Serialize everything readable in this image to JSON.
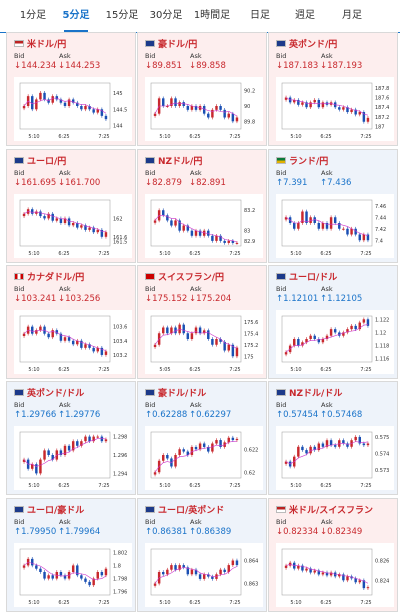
{
  "tabs": [
    {
      "label": "1分足",
      "active": false
    },
    {
      "label": "5分足",
      "active": true
    },
    {
      "label": "15分足",
      "active": false
    },
    {
      "label": "30分足",
      "active": false
    },
    {
      "label": "1時間足",
      "active": false
    },
    {
      "label": "日足",
      "active": false
    },
    {
      "label": "週足",
      "active": false
    },
    {
      "label": "月足",
      "active": false
    }
  ],
  "labels": {
    "bid": "Bid",
    "ask": "Ask"
  },
  "colors": {
    "down_bg": "#fdeeee",
    "up_bg": "#eef3fa",
    "down": "#c8282d",
    "up": "#1a73c9",
    "ma": "#cc33cc"
  },
  "pairs": [
    {
      "name": "米ドル/円",
      "flag": "us-jp",
      "trend": "down",
      "bid": "144.234",
      "ask": "144.253",
      "y_ticks": [
        "145",
        "144.5",
        "144"
      ],
      "x_ticks": [
        "5:10",
        "6:25",
        "7:25"
      ],
      "chart_data": {
        "type": "candlestick",
        "ylim": [
          143.9,
          145.3
        ],
        "close": [
          144.6,
          144.9,
          144.5,
          144.8,
          145.0,
          144.8,
          144.7,
          144.9,
          144.8,
          144.7,
          144.6,
          144.8,
          144.7,
          144.6,
          144.5,
          144.6,
          144.5,
          144.4,
          144.5,
          144.3,
          144.2
        ]
      }
    },
    {
      "name": "豪ドル/円",
      "flag": "au-jp",
      "trend": "down",
      "bid": "89.851",
      "ask": "89.858",
      "y_ticks": [
        "90.2",
        "90",
        "89.8"
      ],
      "x_ticks": [
        "5:10",
        "6:25",
        "7:25"
      ],
      "chart_data": {
        "type": "candlestick",
        "ylim": [
          89.7,
          90.3
        ],
        "close": [
          89.9,
          90.1,
          90.0,
          90.0,
          90.1,
          90.0,
          90.05,
          90.0,
          89.95,
          90.0,
          89.95,
          90.0,
          89.9,
          89.85,
          89.95,
          90.0,
          89.95,
          89.85,
          89.9,
          89.8,
          89.85
        ]
      }
    },
    {
      "name": "英ポンド/円",
      "flag": "gb-jp",
      "trend": "down",
      "bid": "187.183",
      "ask": "187.193",
      "y_ticks": [
        "187.8",
        "187.6",
        "187.4",
        "187.2",
        "187"
      ],
      "x_ticks": [
        "5:10",
        "6:25",
        "7:25"
      ],
      "chart_data": {
        "type": "candlestick",
        "ylim": [
          186.95,
          187.9
        ],
        "close": [
          187.6,
          187.5,
          187.55,
          187.45,
          187.5,
          187.4,
          187.5,
          187.55,
          187.4,
          187.5,
          187.45,
          187.5,
          187.4,
          187.35,
          187.4,
          187.3,
          187.35,
          187.25,
          187.3,
          187.1,
          187.18
        ]
      }
    },
    {
      "name": "ユーロ/円",
      "flag": "eu-jp",
      "trend": "down",
      "bid": "161.695",
      "ask": "161.700",
      "y_ticks": [
        "162",
        "161.6",
        "161.5"
      ],
      "x_ticks": [
        "5:10",
        "6:25",
        "7:25"
      ],
      "chart_data": {
        "type": "candlestick",
        "ylim": [
          161.4,
          162.4
        ],
        "close": [
          162.1,
          162.2,
          162.1,
          162.15,
          162.05,
          162.0,
          162.1,
          161.95,
          162.0,
          161.9,
          162.0,
          161.85,
          161.9,
          161.8,
          161.85,
          161.75,
          161.8,
          161.7,
          161.75,
          161.6,
          161.7
        ]
      }
    },
    {
      "name": "NZドル/円",
      "flag": "nz-jp",
      "trend": "down",
      "bid": "82.879",
      "ask": "82.891",
      "y_ticks": [
        "83.2",
        "83",
        "82.9"
      ],
      "x_ticks": [
        "5:10",
        "6:25",
        "7:25"
      ],
      "chart_data": {
        "type": "candlestick",
        "ylim": [
          82.85,
          83.3
        ],
        "close": [
          83.1,
          83.2,
          83.15,
          83.1,
          83.05,
          83.1,
          83.0,
          83.05,
          83.0,
          82.95,
          83.0,
          82.95,
          83.0,
          82.95,
          82.9,
          82.95,
          82.9,
          82.88,
          82.9,
          82.88,
          82.88
        ]
      }
    },
    {
      "name": "ランド/円",
      "flag": "za-jp",
      "trend": "up",
      "bid": "7.391",
      "ask": "7.436",
      "y_ticks": [
        "7.46",
        "7.44",
        "7.42",
        "7.4"
      ],
      "x_ticks": [
        "5:10",
        "6:25",
        "7:25"
      ],
      "chart_data": {
        "type": "candlestick",
        "ylim": [
          7.39,
          7.47
        ],
        "close": [
          7.44,
          7.43,
          7.42,
          7.43,
          7.45,
          7.43,
          7.44,
          7.43,
          7.42,
          7.43,
          7.42,
          7.44,
          7.43,
          7.42,
          7.42,
          7.41,
          7.42,
          7.41,
          7.4,
          7.41,
          7.4
        ]
      }
    },
    {
      "name": "カナダドル/円",
      "flag": "ca-jp",
      "trend": "down",
      "bid": "103.241",
      "ask": "103.256",
      "y_ticks": [
        "103.6",
        "103.4",
        "103.2"
      ],
      "x_ticks": [
        "5:10",
        "6:25",
        "7:25"
      ],
      "chart_data": {
        "type": "candlestick",
        "ylim": [
          103.1,
          103.75
        ],
        "close": [
          103.5,
          103.6,
          103.5,
          103.55,
          103.6,
          103.5,
          103.45,
          103.55,
          103.5,
          103.4,
          103.45,
          103.4,
          103.35,
          103.4,
          103.3,
          103.35,
          103.3,
          103.25,
          103.3,
          103.2,
          103.25
        ]
      }
    },
    {
      "name": "スイスフラン/円",
      "flag": "ch-jp",
      "trend": "down",
      "bid": "175.152",
      "ask": "175.204",
      "y_ticks": [
        "175.6",
        "175.4",
        "175.2",
        "175"
      ],
      "x_ticks": [
        "5:05",
        "6:25",
        "7:25"
      ],
      "chart_data": {
        "type": "candlestick",
        "ylim": [
          174.9,
          175.7
        ],
        "close": [
          175.2,
          175.4,
          175.5,
          175.4,
          175.5,
          175.4,
          175.55,
          175.4,
          175.3,
          175.4,
          175.5,
          175.4,
          175.45,
          175.3,
          175.2,
          175.3,
          175.25,
          175.1,
          175.2,
          175.0,
          175.15
        ]
      }
    },
    {
      "name": "ユーロ/ドル",
      "flag": "eu-us",
      "trend": "up",
      "bid": "1.12101",
      "ask": "1.12105",
      "y_ticks": [
        "1.122",
        "1.12",
        "1.118",
        "1.116"
      ],
      "x_ticks": [
        "5:10",
        "6:25",
        "7:25"
      ],
      "chart_data": {
        "type": "candlestick",
        "ylim": [
          1.1155,
          1.1225
        ],
        "close": [
          1.117,
          1.118,
          1.119,
          1.118,
          1.1185,
          1.119,
          1.1195,
          1.119,
          1.1185,
          1.119,
          1.1195,
          1.1205,
          1.12,
          1.1195,
          1.12,
          1.1205,
          1.121,
          1.1205,
          1.1215,
          1.122,
          1.121
        ]
      }
    },
    {
      "name": "英ポンド/ドル",
      "flag": "gb-us",
      "trend": "up",
      "bid": "1.29766",
      "ask": "1.29776",
      "y_ticks": [
        "1.298",
        "1.296",
        "1.294"
      ],
      "x_ticks": [
        "5:10",
        "6:25",
        "7:25"
      ],
      "chart_data": {
        "type": "candlestick",
        "ylim": [
          1.2935,
          1.2985
        ],
        "close": [
          1.2955,
          1.2945,
          1.295,
          1.294,
          1.2955,
          1.2965,
          1.296,
          1.2955,
          1.2965,
          1.296,
          1.297,
          1.2965,
          1.2975,
          1.297,
          1.2975,
          1.298,
          1.2975,
          1.298,
          1.298,
          1.2975,
          1.2977
        ]
      }
    },
    {
      "name": "豪ドル/ドル",
      "flag": "au-us",
      "trend": "up",
      "bid": "0.62288",
      "ask": "0.62297",
      "y_ticks": [
        "0.622",
        "0.62"
      ],
      "x_ticks": [
        "5:10",
        "6:25",
        "7:25"
      ],
      "chart_data": {
        "type": "candlestick",
        "ylim": [
          0.6195,
          0.6235
        ],
        "close": [
          0.62,
          0.621,
          0.6215,
          0.6212,
          0.6205,
          0.6215,
          0.622,
          0.6218,
          0.6215,
          0.6222,
          0.622,
          0.6225,
          0.6222,
          0.6218,
          0.6225,
          0.6228,
          0.6222,
          0.6226,
          0.623,
          0.6228,
          0.6229
        ]
      }
    },
    {
      "name": "NZドル/ドル",
      "flag": "nz-us",
      "trend": "up",
      "bid": "0.57454",
      "ask": "0.57468",
      "y_ticks": [
        "0.575",
        "0.574",
        "0.573"
      ],
      "x_ticks": [
        "5:10",
        "6:25",
        "7:25"
      ],
      "chart_data": {
        "type": "candlestick",
        "ylim": [
          0.5725,
          0.5753
        ],
        "close": [
          0.5735,
          0.5732,
          0.5738,
          0.5744,
          0.5742,
          0.574,
          0.5744,
          0.5742,
          0.5746,
          0.5744,
          0.5748,
          0.5745,
          0.5744,
          0.5748,
          0.5746,
          0.5744,
          0.5748,
          0.575,
          0.5746,
          0.5745,
          0.5746
        ]
      }
    },
    {
      "name": "ユーロ/豪ドル",
      "flag": "eu-au",
      "trend": "up",
      "bid": "1.79950",
      "ask": "1.79964",
      "y_ticks": [
        "1.802",
        "1.8",
        "1.798",
        "1.796"
      ],
      "x_ticks": [
        "5:10",
        "6:25",
        "7:25"
      ],
      "chart_data": {
        "type": "candlestick",
        "ylim": [
          1.7955,
          1.8025
        ],
        "close": [
          1.8,
          1.801,
          1.8,
          1.7995,
          1.799,
          1.798,
          1.7985,
          1.798,
          1.799,
          1.7985,
          1.798,
          1.799,
          1.8,
          1.7985,
          1.798,
          1.7975,
          1.797,
          1.798,
          1.799,
          1.7985,
          1.7995
        ]
      }
    },
    {
      "name": "ユーロ/英ポンド",
      "flag": "eu-gb",
      "trend": "up",
      "bid": "0.86381",
      "ask": "0.86389",
      "y_ticks": [
        "0.864",
        "0.863"
      ],
      "x_ticks": [
        "5:10",
        "6:25",
        "7:25"
      ],
      "chart_data": {
        "type": "candlestick",
        "ylim": [
          0.8625,
          0.8645
        ],
        "close": [
          0.863,
          0.8635,
          0.8634,
          0.8636,
          0.8638,
          0.8636,
          0.8638,
          0.8637,
          0.8634,
          0.8636,
          0.8634,
          0.8632,
          0.8634,
          0.8633,
          0.8632,
          0.8634,
          0.8636,
          0.8635,
          0.8638,
          0.864,
          0.8638
        ]
      }
    },
    {
      "name": "米ドル/スイスフラン",
      "flag": "us-ch",
      "trend": "down",
      "bid": "0.82334",
      "ask": "0.82349",
      "y_ticks": [
        "0.826",
        "0.824"
      ],
      "x_ticks": [
        "5:10",
        "6:25",
        "7:25"
      ],
      "chart_data": {
        "type": "candlestick",
        "ylim": [
          0.8225,
          0.8272
        ],
        "close": [
          0.8255,
          0.8258,
          0.8252,
          0.8255,
          0.825,
          0.8252,
          0.8248,
          0.825,
          0.8246,
          0.8248,
          0.8245,
          0.8248,
          0.8244,
          0.8246,
          0.824,
          0.8244,
          0.8242,
          0.8238,
          0.824,
          0.8232,
          0.8233
        ]
      }
    }
  ]
}
